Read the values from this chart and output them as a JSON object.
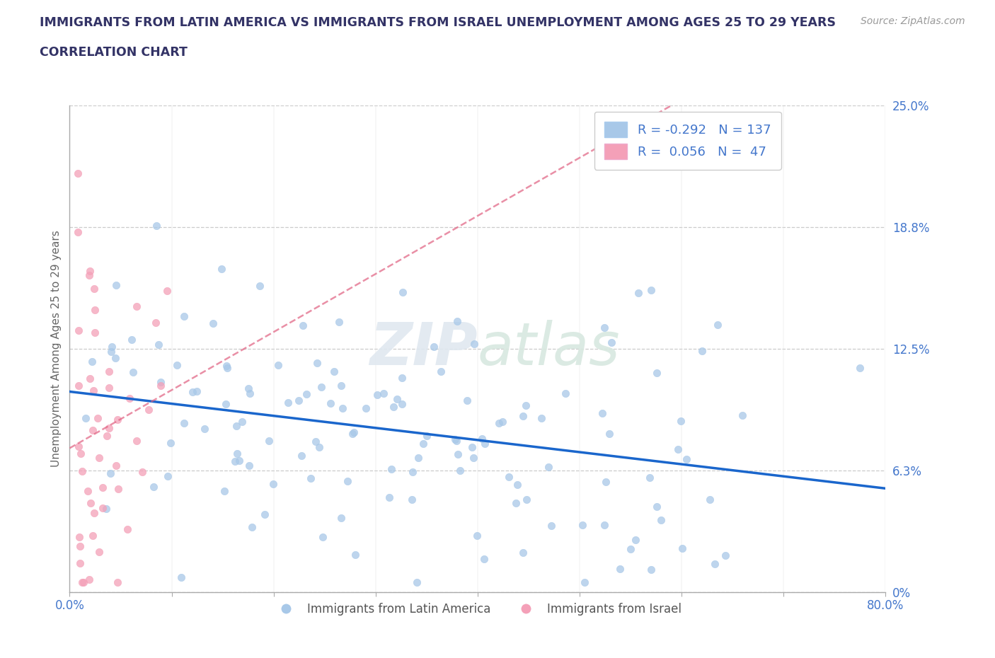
{
  "title_line1": "IMMIGRANTS FROM LATIN AMERICA VS IMMIGRANTS FROM ISRAEL UNEMPLOYMENT AMONG AGES 25 TO 29 YEARS",
  "title_line2": "CORRELATION CHART",
  "source": "Source: ZipAtlas.com",
  "ylabel": "Unemployment Among Ages 25 to 29 years",
  "xlim": [
    0.0,
    0.8
  ],
  "ylim": [
    0.0,
    0.25
  ],
  "yticks": [
    0.0,
    0.0625,
    0.125,
    0.1875,
    0.25
  ],
  "ytick_labels": [
    "0%",
    "6.3%",
    "12.5%",
    "18.8%",
    "25.0%"
  ],
  "xtick_left_label": "0.0%",
  "xtick_right_label": "80.0%",
  "blue_color": "#a8c8e8",
  "pink_color": "#f4a0b8",
  "blue_line_color": "#1a66cc",
  "pink_line_color": "#e06080",
  "legend_label_blue": "Immigrants from Latin America",
  "legend_label_pink": "Immigrants from Israel",
  "R_blue": -0.292,
  "N_blue": 137,
  "R_pink": 0.056,
  "N_pink": 47,
  "watermark": "ZIPatlas",
  "background_color": "#ffffff",
  "title_color": "#333366",
  "axis_label_color": "#666666",
  "tick_label_color": "#4477cc"
}
